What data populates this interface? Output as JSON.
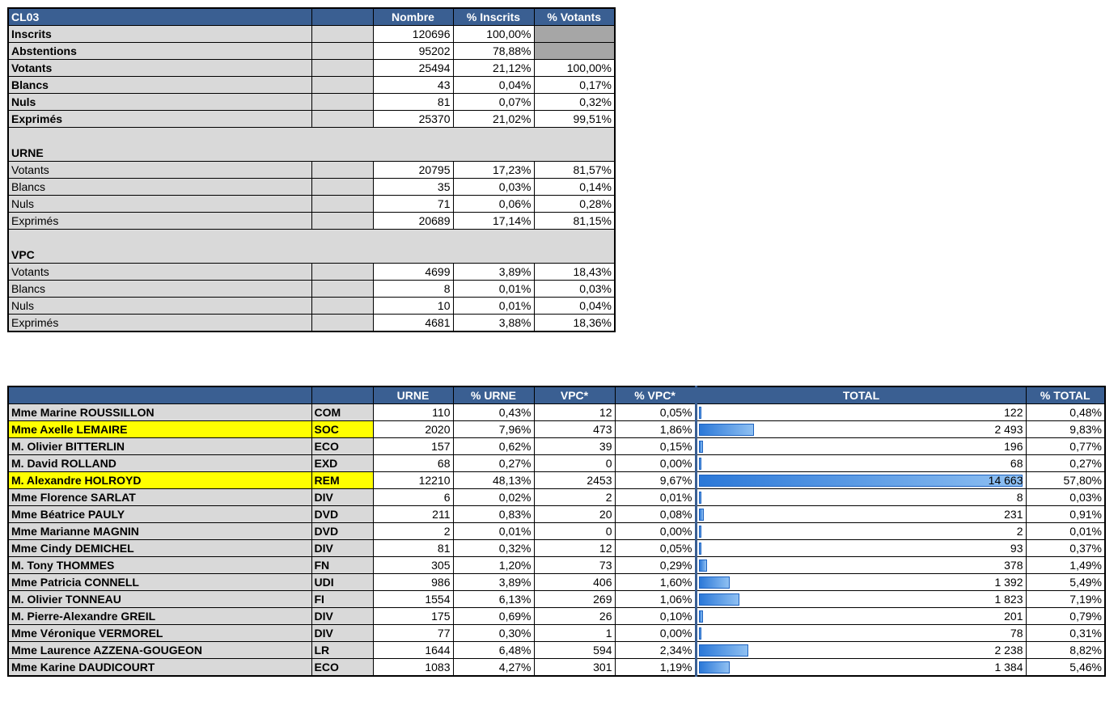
{
  "summary": {
    "headers": [
      "CL03",
      "",
      "Nombre",
      "% Inscrits",
      "% Votants"
    ],
    "rows_main": [
      {
        "label": "Inscrits",
        "n": "120696",
        "pi": "100,00%",
        "pv": ""
      },
      {
        "label": "Abstentions",
        "n": "95202",
        "pi": "78,88%",
        "pv": ""
      },
      {
        "label": "Votants",
        "n": "25494",
        "pi": "21,12%",
        "pv": "100,00%"
      },
      {
        "label": "Blancs",
        "n": "43",
        "pi": "0,04%",
        "pv": "0,17%"
      },
      {
        "label": "Nuls",
        "n": "81",
        "pi": "0,07%",
        "pv": "0,32%"
      },
      {
        "label": "Exprimés",
        "n": "25370",
        "pi": "21,02%",
        "pv": "99,51%"
      }
    ],
    "urne_title": "URNE",
    "rows_urne": [
      {
        "label": "Votants",
        "n": "20795",
        "pi": "17,23%",
        "pv": "81,57%"
      },
      {
        "label": "Blancs",
        "n": "35",
        "pi": "0,03%",
        "pv": "0,14%"
      },
      {
        "label": "Nuls",
        "n": "71",
        "pi": "0,06%",
        "pv": "0,28%"
      },
      {
        "label": "Exprimés",
        "n": "20689",
        "pi": "17,14%",
        "pv": "81,15%"
      }
    ],
    "vpc_title": "VPC",
    "rows_vpc": [
      {
        "label": "Votants",
        "n": "4699",
        "pi": "3,89%",
        "pv": "18,43%"
      },
      {
        "label": "Blancs",
        "n": "8",
        "pi": "0,01%",
        "pv": "0,03%"
      },
      {
        "label": "Nuls",
        "n": "10",
        "pi": "0,01%",
        "pv": "0,04%"
      },
      {
        "label": "Exprimés",
        "n": "4681",
        "pi": "3,88%",
        "pv": "18,36%"
      }
    ]
  },
  "candidates": {
    "headers": [
      "",
      "",
      "URNE",
      "% URNE",
      "VPC*",
      "% VPC*",
      "TOTAL",
      "% TOTAL"
    ],
    "bar_color": "#2b78d8",
    "highlight_color": "#ffff00",
    "rows": [
      {
        "name": "Mme Marine ROUSSILLON",
        "party": "COM",
        "urne": "110",
        "purne": "0,43%",
        "vpc": "12",
        "pvpc": "0,05%",
        "total": "122",
        "total_value": 122,
        "ptotal": "0,48%",
        "hl": false
      },
      {
        "name": "Mme Axelle LEMAIRE",
        "party": "SOC",
        "urne": "2020",
        "purne": "7,96%",
        "vpc": "473",
        "pvpc": "1,86%",
        "total": "2 493",
        "total_value": 2493,
        "ptotal": "9,83%",
        "hl": true
      },
      {
        "name": "M. Olivier BITTERLIN",
        "party": "ECO",
        "urne": "157",
        "purne": "0,62%",
        "vpc": "39",
        "pvpc": "0,15%",
        "total": "196",
        "total_value": 196,
        "ptotal": "0,77%",
        "hl": false
      },
      {
        "name": "M. David ROLLAND",
        "party": "EXD",
        "urne": "68",
        "purne": "0,27%",
        "vpc": "0",
        "pvpc": "0,00%",
        "total": "68",
        "total_value": 68,
        "ptotal": "0,27%",
        "hl": false
      },
      {
        "name": "M. Alexandre HOLROYD",
        "party": "REM",
        "urne": "12210",
        "purne": "48,13%",
        "vpc": "2453",
        "pvpc": "9,67%",
        "total": "14 663",
        "total_value": 14663,
        "ptotal": "57,80%",
        "hl": true
      },
      {
        "name": "Mme Florence SARLAT",
        "party": "DIV",
        "urne": "6",
        "purne": "0,02%",
        "vpc": "2",
        "pvpc": "0,01%",
        "total": "8",
        "total_value": 8,
        "ptotal": "0,03%",
        "hl": false
      },
      {
        "name": "Mme Béatrice PAULY",
        "party": "DVD",
        "urne": "211",
        "purne": "0,83%",
        "vpc": "20",
        "pvpc": "0,08%",
        "total": "231",
        "total_value": 231,
        "ptotal": "0,91%",
        "hl": false
      },
      {
        "name": "Mme Marianne MAGNIN",
        "party": "DVD",
        "urne": "2",
        "purne": "0,01%",
        "vpc": "0",
        "pvpc": "0,00%",
        "total": "2",
        "total_value": 2,
        "ptotal": "0,01%",
        "hl": false
      },
      {
        "name": "Mme Cindy DEMICHEL",
        "party": "DIV",
        "urne": "81",
        "purne": "0,32%",
        "vpc": "12",
        "pvpc": "0,05%",
        "total": "93",
        "total_value": 93,
        "ptotal": "0,37%",
        "hl": false
      },
      {
        "name": "M. Tony THOMMES",
        "party": "FN",
        "urne": "305",
        "purne": "1,20%",
        "vpc": "73",
        "pvpc": "0,29%",
        "total": "378",
        "total_value": 378,
        "ptotal": "1,49%",
        "hl": false
      },
      {
        "name": "Mme Patricia CONNELL",
        "party": "UDI",
        "urne": "986",
        "purne": "3,89%",
        "vpc": "406",
        "pvpc": "1,60%",
        "total": "1 392",
        "total_value": 1392,
        "ptotal": "5,49%",
        "hl": false
      },
      {
        "name": "M. Olivier TONNEAU",
        "party": "FI",
        "urne": "1554",
        "purne": "6,13%",
        "vpc": "269",
        "pvpc": "1,06%",
        "total": "1 823",
        "total_value": 1823,
        "ptotal": "7,19%",
        "hl": false
      },
      {
        "name": "M. Pierre-Alexandre GREIL",
        "party": "DIV",
        "urne": "175",
        "purne": "0,69%",
        "vpc": "26",
        "pvpc": "0,10%",
        "total": "201",
        "total_value": 201,
        "ptotal": "0,79%",
        "hl": false
      },
      {
        "name": "Mme Véronique VERMOREL",
        "party": "DIV",
        "urne": "77",
        "purne": "0,30%",
        "vpc": "1",
        "pvpc": "0,00%",
        "total": "78",
        "total_value": 78,
        "ptotal": "0,31%",
        "hl": false
      },
      {
        "name": "Mme Laurence AZZENA-GOUGEON",
        "party": "LR",
        "urne": "1644",
        "purne": "6,48%",
        "vpc": "594",
        "pvpc": "2,34%",
        "total": "2 238",
        "total_value": 2238,
        "ptotal": "8,82%",
        "hl": false
      },
      {
        "name": "Mme Karine DAUDICOURT",
        "party": "ECO",
        "urne": "1083",
        "purne": "4,27%",
        "vpc": "301",
        "pvpc": "1,19%",
        "total": "1 384",
        "total_value": 1384,
        "ptotal": "5,46%",
        "hl": false
      }
    ]
  }
}
